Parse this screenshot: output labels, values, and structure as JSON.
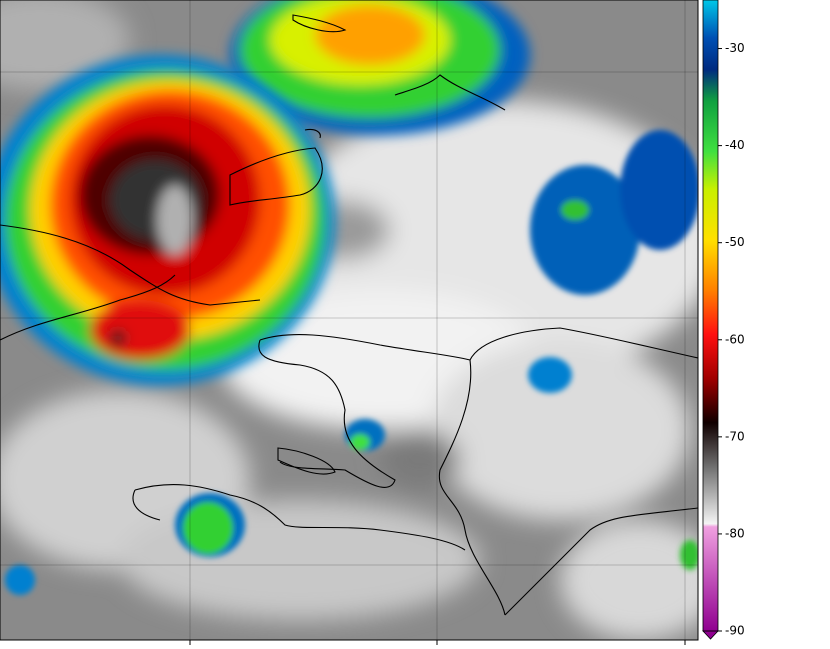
{
  "colorbar": {
    "lim": [
      -90,
      -25
    ],
    "ticks": [
      -30,
      -40,
      -50,
      -60,
      -70,
      -80,
      -90
    ]
  }
}
